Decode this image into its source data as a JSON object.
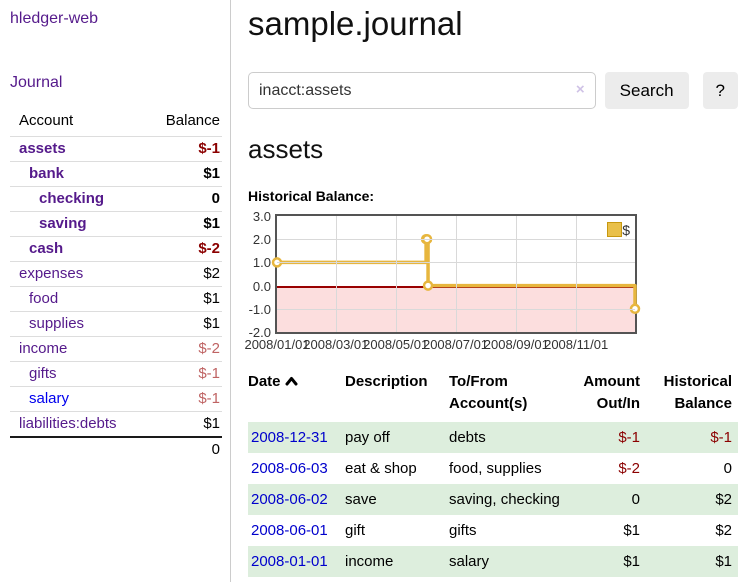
{
  "sidebar": {
    "brand": "hledger-web",
    "journal_link": "Journal",
    "accounts_table": {
      "headers": [
        "Account",
        "Balance"
      ],
      "rows": [
        {
          "account": "assets",
          "balance": "$-1",
          "depth": 0,
          "emphasized": true,
          "visited": true
        },
        {
          "account": "bank",
          "balance": "$1",
          "depth": 1,
          "emphasized": true,
          "visited": true
        },
        {
          "account": "checking",
          "balance": "0",
          "depth": 2,
          "emphasized": true,
          "visited": true
        },
        {
          "account": "saving",
          "balance": "$1",
          "depth": 2,
          "emphasized": true,
          "visited": true
        },
        {
          "account": "cash",
          "balance": "$-2",
          "depth": 1,
          "emphasized": true,
          "visited": true
        },
        {
          "account": "expenses",
          "balance": "$2",
          "depth": 0,
          "emphasized": false,
          "visited": true
        },
        {
          "account": "food",
          "balance": "$1",
          "depth": 1,
          "emphasized": false,
          "visited": true
        },
        {
          "account": "supplies",
          "balance": "$1",
          "depth": 1,
          "emphasized": false,
          "visited": true
        },
        {
          "account": "income",
          "balance": "$-2",
          "depth": 0,
          "emphasized": false,
          "visited": true
        },
        {
          "account": "gifts",
          "balance": "$-1",
          "depth": 1,
          "emphasized": false,
          "visited": true
        },
        {
          "account": "salary",
          "balance": "$-1",
          "depth": 1,
          "emphasized": false,
          "visited": false
        },
        {
          "account": "liabilities:debts",
          "balance": "$1",
          "depth": 0,
          "emphasized": false,
          "visited": true
        }
      ],
      "total": "0"
    }
  },
  "header": {
    "title": "sample.journal"
  },
  "search": {
    "value": "inacct:assets",
    "clear_icon": "×",
    "button_label": "Search",
    "help_label": "?"
  },
  "account_page": {
    "title": "assets",
    "chart_label": "Historical Balance:"
  },
  "chart_data": {
    "type": "line",
    "step": true,
    "series": [
      {
        "name": "$",
        "color": "#e7b63e",
        "points": [
          [
            "2008-01-01",
            1
          ],
          [
            "2008-06-01",
            2
          ],
          [
            "2008-06-02",
            2
          ],
          [
            "2008-06-03",
            0
          ],
          [
            "2008-12-31",
            -1
          ]
        ]
      }
    ],
    "xlim": [
      "2008-01-01",
      "2008-12-31"
    ],
    "ylim": [
      -2.0,
      3.0
    ],
    "yticks": [
      "3.0",
      "2.0",
      "1.0",
      "0.0",
      "-1.0",
      "-2.0"
    ],
    "xticks": [
      {
        "label": "2008/01/01",
        "date": "2008-01-01"
      },
      {
        "label": "2008/03/01",
        "date": "2008-03-01"
      },
      {
        "label": "2008/05/01",
        "date": "2008-05-01"
      },
      {
        "label": "2008/07/01",
        "date": "2008-07-01"
      },
      {
        "label": "2008/09/01",
        "date": "2008-09-01"
      },
      {
        "label": "2008/11/01",
        "date": "2008-11-01"
      }
    ],
    "legend": "$",
    "grid": true,
    "legend_position": "top-right",
    "negative_region_color": "#fcdede",
    "zero_line_color": "#990000"
  },
  "register": {
    "headers": [
      "Date",
      "Description",
      "To/From Account(s)",
      "Amount Out/In",
      "Historical Balance"
    ],
    "rows": [
      {
        "date": "2008-12-31",
        "description": "pay off",
        "accounts": "debts",
        "amount": "$-1",
        "balance": "$-1"
      },
      {
        "date": "2008-06-03",
        "description": "eat & shop",
        "accounts": "food, supplies",
        "amount": "$-2",
        "balance": "0"
      },
      {
        "date": "2008-06-02",
        "description": "save",
        "accounts": "saving, checking",
        "amount": "0",
        "balance": "$2"
      },
      {
        "date": "2008-06-01",
        "description": "gift",
        "accounts": "gifts",
        "amount": "$1",
        "balance": "$2"
      },
      {
        "date": "2008-01-01",
        "description": "income",
        "accounts": "salary",
        "amount": "$1",
        "balance": "$1"
      }
    ]
  }
}
